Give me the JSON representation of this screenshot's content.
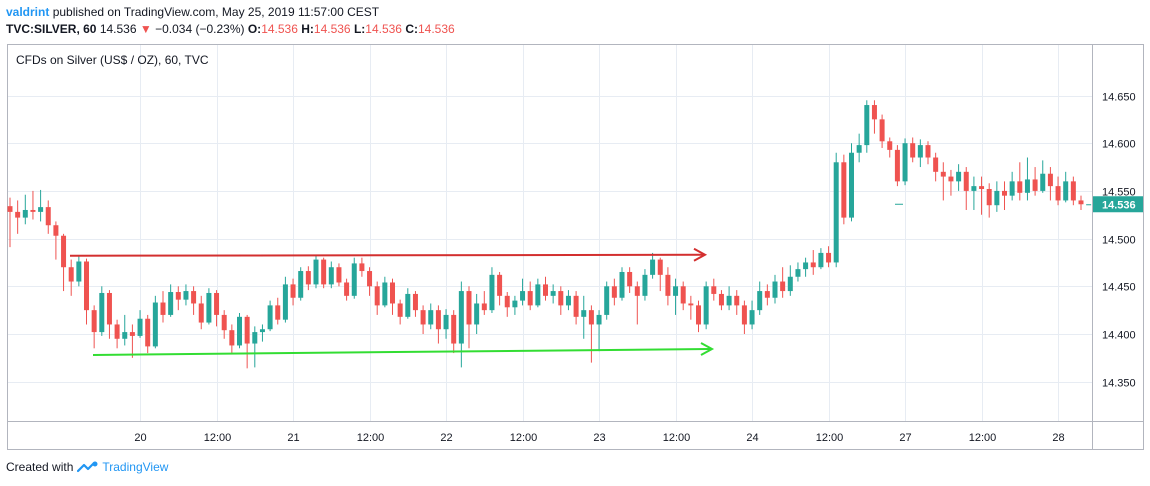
{
  "header": {
    "author": "valdrint",
    "published": "published on TradingView.com, May 25, 2019 11:57:00 CEST",
    "symbol": "TVC:SILVER, 60",
    "last": "14.536",
    "change": "−0.034 (−0.23%)",
    "o_label": "O:",
    "o_value": "14.536",
    "h_label": "H:",
    "h_value": "14.536",
    "l_label": "L:",
    "l_value": "14.536",
    "c_label": "C:",
    "c_value": "14.536"
  },
  "footer": {
    "created_with": "Created with",
    "brand": "TradingView"
  },
  "colors": {
    "up": "#26a69a",
    "down": "#ef5350",
    "resistance": "#d32f2f",
    "support": "#33dd33",
    "price_tag": "#26a69a",
    "grid": "#e7ecf3"
  },
  "chart_data": {
    "type": "candlestick",
    "title": "CFDs on Silver (US$ / OZ), 60, TVC",
    "y_range": [
      14.32,
      14.66
    ],
    "y_ticks": [
      "14.650",
      "14.600",
      "14.550",
      "14.500",
      "14.450",
      "14.400",
      "14.350"
    ],
    "x_ticks": [
      "20",
      "12:00",
      "21",
      "12:00",
      "22",
      "12:00",
      "23",
      "12:00",
      "24",
      "12:00",
      "27",
      "12:00",
      "28"
    ],
    "x_tick_bars": [
      17,
      27,
      37,
      47,
      57,
      67,
      77,
      87,
      97,
      107,
      117,
      127,
      137
    ],
    "last_price": "14.536",
    "resistance_line": {
      "price": 14.482
    },
    "support_line": {
      "price": 14.378
    },
    "candles": [
      [
        14.534,
        14.528,
        14.543,
        14.491
      ],
      [
        14.528,
        14.522,
        14.54,
        14.505
      ],
      [
        14.522,
        14.53,
        14.546,
        14.515
      ],
      [
        14.53,
        14.528,
        14.55,
        14.52
      ],
      [
        14.528,
        14.533,
        14.551,
        14.518
      ],
      [
        14.533,
        14.514,
        14.54,
        14.505
      ],
      [
        14.514,
        14.503,
        14.518,
        14.478
      ],
      [
        14.503,
        14.47,
        14.505,
        14.445
      ],
      [
        14.47,
        14.455,
        14.478,
        14.44
      ],
      [
        14.455,
        14.476,
        14.482,
        14.45
      ],
      [
        14.476,
        14.425,
        14.479,
        14.41
      ],
      [
        14.425,
        14.402,
        14.43,
        14.385
      ],
      [
        14.402,
        14.443,
        14.45,
        14.398
      ],
      [
        14.443,
        14.41,
        14.446,
        14.395
      ],
      [
        14.41,
        14.395,
        14.415,
        14.385
      ],
      [
        14.395,
        14.402,
        14.42,
        14.388
      ],
      [
        14.402,
        14.398,
        14.41,
        14.375
      ],
      [
        14.398,
        14.416,
        14.425,
        14.396
      ],
      [
        14.416,
        14.387,
        14.42,
        14.38
      ],
      [
        14.387,
        14.433,
        14.44,
        14.385
      ],
      [
        14.433,
        14.42,
        14.445,
        14.412
      ],
      [
        14.42,
        14.444,
        14.452,
        14.418
      ],
      [
        14.444,
        14.436,
        14.45,
        14.425
      ],
      [
        14.436,
        14.445,
        14.452,
        14.43
      ],
      [
        14.445,
        14.432,
        14.45,
        14.42
      ],
      [
        14.432,
        14.412,
        14.44,
        14.405
      ],
      [
        14.412,
        14.443,
        14.448,
        14.41
      ],
      [
        14.443,
        14.42,
        14.446,
        14.408
      ],
      [
        14.42,
        14.404,
        14.425,
        14.395
      ],
      [
        14.404,
        14.388,
        14.41,
        14.38
      ],
      [
        14.388,
        14.418,
        14.422,
        14.385
      ],
      [
        14.418,
        14.39,
        14.42,
        14.364
      ],
      [
        14.39,
        14.402,
        14.408,
        14.365
      ],
      [
        14.402,
        14.405,
        14.41,
        14.392
      ],
      [
        14.405,
        14.43,
        14.435,
        14.403
      ],
      [
        14.43,
        14.415,
        14.438,
        14.41
      ],
      [
        14.415,
        14.452,
        14.46,
        14.412
      ],
      [
        14.452,
        14.438,
        14.458,
        14.43
      ],
      [
        14.438,
        14.466,
        14.47,
        14.435
      ],
      [
        14.466,
        14.452,
        14.471,
        14.446
      ],
      [
        14.452,
        14.478,
        14.482,
        14.448
      ],
      [
        14.478,
        14.452,
        14.48,
        14.448
      ],
      [
        14.452,
        14.47,
        14.476,
        14.448
      ],
      [
        14.47,
        14.454,
        14.474,
        14.45
      ],
      [
        14.454,
        14.44,
        14.458,
        14.435
      ],
      [
        14.44,
        14.474,
        14.48,
        14.437
      ],
      [
        14.474,
        14.466,
        14.48,
        14.46
      ],
      [
        14.466,
        14.45,
        14.47,
        14.44
      ],
      [
        14.45,
        14.43,
        14.455,
        14.42
      ],
      [
        14.43,
        14.454,
        14.46,
        14.428
      ],
      [
        14.454,
        14.432,
        14.458,
        14.42
      ],
      [
        14.432,
        14.418,
        14.436,
        14.41
      ],
      [
        14.418,
        14.442,
        14.448,
        14.416
      ],
      [
        14.442,
        14.425,
        14.445,
        14.418
      ],
      [
        14.425,
        14.41,
        14.43,
        14.4
      ],
      [
        14.41,
        14.425,
        14.432,
        14.405
      ],
      [
        14.425,
        14.405,
        14.43,
        14.39
      ],
      [
        14.405,
        14.42,
        14.426,
        14.395
      ],
      [
        14.42,
        14.39,
        14.425,
        14.38
      ],
      [
        14.39,
        14.445,
        14.455,
        14.365
      ],
      [
        14.445,
        14.41,
        14.45,
        14.385
      ],
      [
        14.41,
        14.432,
        14.442,
        14.4
      ],
      [
        14.432,
        14.425,
        14.445,
        14.42
      ],
      [
        14.425,
        14.462,
        14.47,
        14.422
      ],
      [
        14.462,
        14.44,
        14.465,
        14.43
      ],
      [
        14.44,
        14.428,
        14.444,
        14.418
      ],
      [
        14.428,
        14.435,
        14.44,
        14.42
      ],
      [
        14.435,
        14.445,
        14.458,
        14.43
      ],
      [
        14.445,
        14.43,
        14.455,
        14.425
      ],
      [
        14.43,
        14.452,
        14.458,
        14.428
      ],
      [
        14.452,
        14.44,
        14.46,
        14.435
      ],
      [
        14.44,
        14.445,
        14.452,
        14.432
      ],
      [
        14.445,
        14.43,
        14.45,
        14.42
      ],
      [
        14.43,
        14.44,
        14.446,
        14.425
      ],
      [
        14.44,
        14.418,
        14.445,
        14.41
      ],
      [
        14.418,
        14.425,
        14.44,
        14.395
      ],
      [
        14.425,
        14.41,
        14.43,
        14.37
      ],
      [
        14.41,
        14.42,
        14.425,
        14.382
      ],
      [
        14.42,
        14.45,
        14.455,
        14.415
      ],
      [
        14.45,
        14.438,
        14.458,
        14.43
      ],
      [
        14.438,
        14.465,
        14.47,
        14.435
      ],
      [
        14.465,
        14.45,
        14.47,
        14.443
      ],
      [
        14.45,
        14.44,
        14.455,
        14.41
      ],
      [
        14.44,
        14.462,
        14.468,
        14.435
      ],
      [
        14.462,
        14.478,
        14.485,
        14.458
      ],
      [
        14.478,
        14.462,
        14.48,
        14.445
      ],
      [
        14.462,
        14.44,
        14.47,
        14.43
      ],
      [
        14.44,
        14.45,
        14.458,
        14.42
      ],
      [
        14.45,
        14.432,
        14.455,
        14.425
      ],
      [
        14.432,
        14.43,
        14.44,
        14.415
      ],
      [
        14.43,
        14.41,
        14.435,
        14.402
      ],
      [
        14.41,
        14.45,
        14.455,
        14.405
      ],
      [
        14.45,
        14.442,
        14.458,
        14.435
      ],
      [
        14.442,
        14.43,
        14.446,
        14.425
      ],
      [
        14.43,
        14.44,
        14.45,
        14.425
      ],
      [
        14.44,
        14.43,
        14.446,
        14.42
      ],
      [
        14.43,
        14.41,
        14.435,
        14.4
      ],
      [
        14.41,
        14.425,
        14.435,
        14.405
      ],
      [
        14.425,
        14.445,
        14.455,
        14.42
      ],
      [
        14.445,
        14.438,
        14.452,
        14.43
      ],
      [
        14.438,
        14.455,
        14.462,
        14.432
      ],
      [
        14.455,
        14.445,
        14.47,
        14.438
      ],
      [
        14.445,
        14.46,
        14.472,
        14.44
      ],
      [
        14.46,
        14.468,
        14.475,
        14.455
      ],
      [
        14.468,
        14.475,
        14.48,
        14.46
      ],
      [
        14.475,
        14.47,
        14.488,
        14.462
      ],
      [
        14.47,
        14.485,
        14.49,
        14.468
      ],
      [
        14.485,
        14.475,
        14.492,
        14.47
      ],
      [
        14.475,
        14.58,
        14.59,
        14.47
      ],
      [
        14.58,
        14.522,
        14.588,
        14.515
      ],
      [
        14.522,
        14.59,
        14.6,
        14.518
      ],
      [
        14.59,
        14.598,
        14.61,
        14.58
      ],
      [
        14.598,
        14.64,
        14.645,
        14.59
      ],
      [
        14.64,
        14.625,
        14.645,
        14.61
      ],
      [
        14.625,
        14.602,
        14.63,
        14.595
      ],
      [
        14.602,
        14.593,
        14.606,
        14.585
      ],
      [
        14.593,
        14.56,
        14.598,
        14.555
      ],
      [
        14.56,
        14.6,
        14.605,
        14.556
      ],
      [
        14.6,
        14.585,
        14.606,
        14.58
      ],
      [
        14.585,
        14.598,
        14.604,
        14.575
      ],
      [
        14.598,
        14.585,
        14.602,
        14.578
      ],
      [
        14.585,
        14.57,
        14.59,
        14.56
      ],
      [
        14.57,
        14.565,
        14.58,
        14.54
      ],
      [
        14.565,
        14.56,
        14.572,
        14.545
      ],
      [
        14.56,
        14.57,
        14.578,
        14.55
      ],
      [
        14.57,
        14.55,
        14.575,
        14.53
      ],
      [
        14.55,
        14.555,
        14.565,
        14.53
      ],
      [
        14.555,
        14.552,
        14.565,
        14.525
      ],
      [
        14.552,
        14.535,
        14.558,
        14.522
      ],
      [
        14.535,
        14.55,
        14.56,
        14.528
      ],
      [
        14.55,
        14.545,
        14.56,
        14.53
      ],
      [
        14.545,
        14.56,
        14.57,
        14.54
      ],
      [
        14.56,
        14.548,
        14.58,
        14.54
      ],
      [
        14.548,
        14.562,
        14.585,
        14.54
      ],
      [
        14.562,
        14.55,
        14.575,
        14.545
      ],
      [
        14.55,
        14.568,
        14.582,
        14.548
      ],
      [
        14.568,
        14.555,
        14.575,
        14.54
      ],
      [
        14.555,
        14.54,
        14.565,
        14.535
      ],
      [
        14.54,
        14.56,
        14.57,
        14.538
      ],
      [
        14.56,
        14.54,
        14.565,
        14.535
      ],
      [
        14.54,
        14.536,
        14.545,
        14.53
      ],
      [
        14.536,
        14.536,
        14.536,
        14.536
      ]
    ]
  }
}
